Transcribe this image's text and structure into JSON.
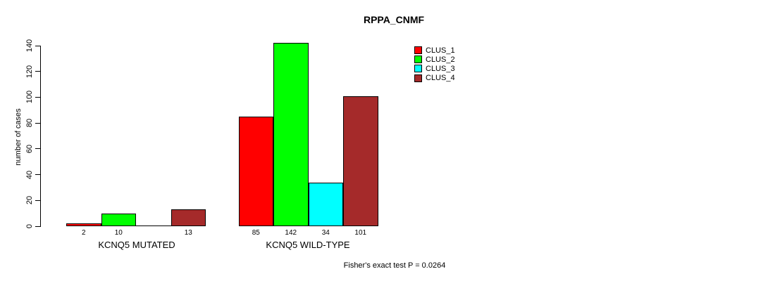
{
  "title": "RPPA_CNMF",
  "ylabel": "number of cases",
  "annotation": "Fisher's exact test P = 0.0264",
  "legend": [
    {
      "label": "CLUS_1",
      "color": "#FF0000"
    },
    {
      "label": "CLUS_2",
      "color": "#00FF00"
    },
    {
      "label": "CLUS_3",
      "color": "#00FFFF"
    },
    {
      "label": "CLUS_4",
      "color": "#A52A2A"
    }
  ],
  "chart_data": {
    "type": "bar",
    "title": "RPPA_CNMF",
    "xlabel": "",
    "ylabel": "number of cases",
    "ylim": [
      0,
      140
    ],
    "yticks": [
      0,
      20,
      40,
      60,
      80,
      100,
      120,
      140
    ],
    "grid": false,
    "legend_position": "top-right",
    "categories": [
      "KCNQ5 MUTATED",
      "KCNQ5 WILD-TYPE"
    ],
    "series": [
      {
        "name": "CLUS_1",
        "color": "#FF0000",
        "values": [
          2,
          85
        ]
      },
      {
        "name": "CLUS_2",
        "color": "#00FF00",
        "values": [
          10,
          142
        ]
      },
      {
        "name": "CLUS_3",
        "color": "#00FFFF",
        "values": [
          0,
          34
        ]
      },
      {
        "name": "CLUS_4",
        "color": "#A52A2A",
        "values": [
          13,
          101
        ]
      }
    ],
    "bar_value_labels": [
      [
        "2",
        "10",
        "",
        "13"
      ],
      [
        "85",
        "142",
        "34",
        "101"
      ]
    ],
    "annotation": "Fisher's exact test P = 0.0264"
  }
}
